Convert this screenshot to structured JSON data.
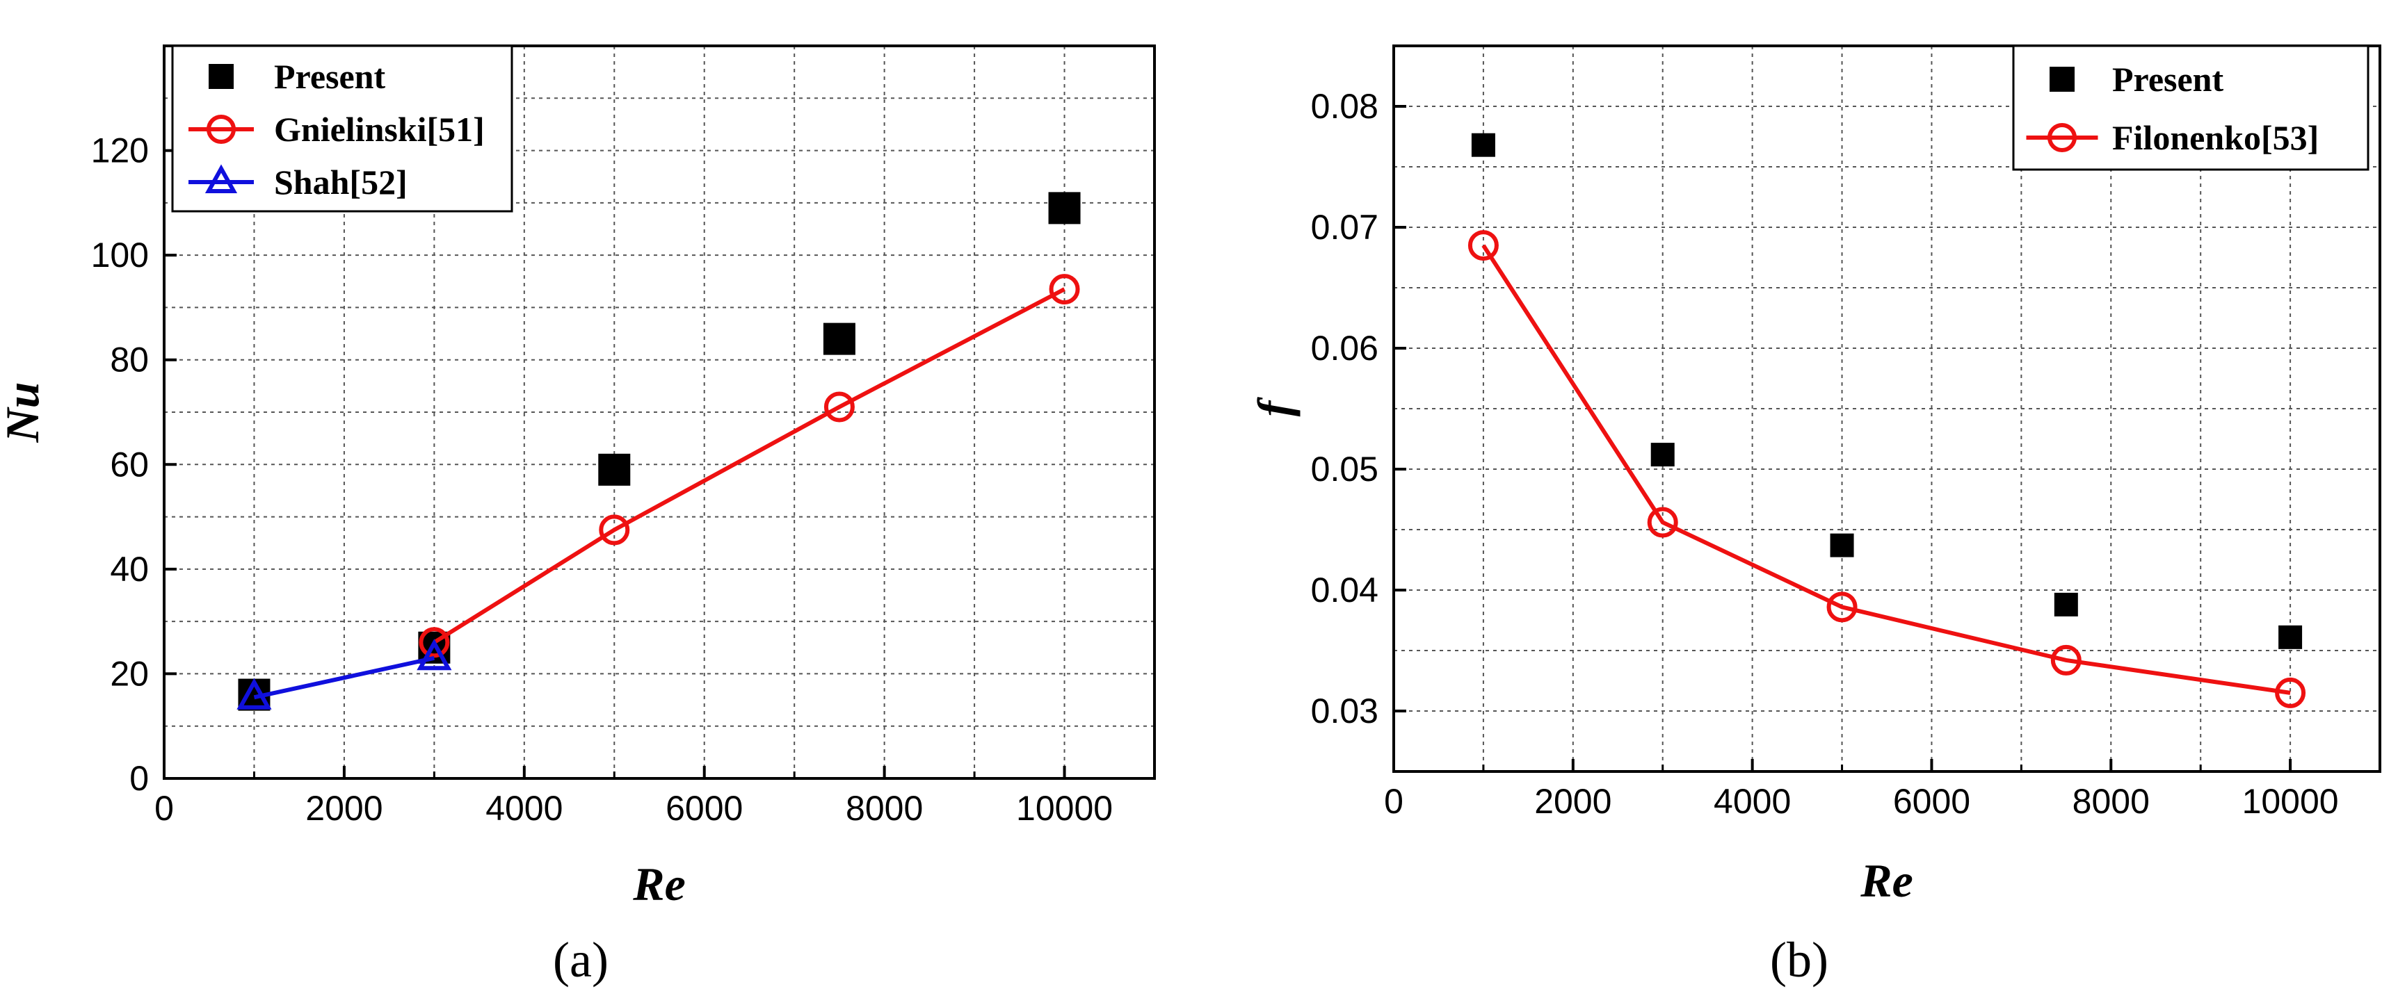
{
  "chart_data": [
    {
      "type": "scatter",
      "panel_label": "(a)",
      "xlabel": "Re",
      "ylabel": "Nu",
      "xlim": [
        0,
        11000
      ],
      "ylim": [
        0,
        140
      ],
      "xticks": [
        0,
        2000,
        4000,
        6000,
        8000,
        10000
      ],
      "yticks": [
        0,
        20,
        40,
        60,
        80,
        100,
        120
      ],
      "grid": true,
      "legend_position": "top-left",
      "series": [
        {
          "name": "Present",
          "marker": "square",
          "line": false,
          "color": "#000000",
          "x": [
            1000,
            3000,
            5000,
            7500,
            10000
          ],
          "y": [
            16,
            25,
            59,
            84,
            109
          ]
        },
        {
          "name": "Gnielinski[51]",
          "marker": "circle",
          "line": true,
          "color": "#ee1111",
          "x": [
            3000,
            5000,
            7500,
            10000
          ],
          "y": [
            26,
            47.5,
            71,
            93.5
          ]
        },
        {
          "name": "Shah[52]",
          "marker": "triangle",
          "line": true,
          "color": "#1010dd",
          "x": [
            1000,
            3000
          ],
          "y": [
            15.5,
            23
          ]
        }
      ]
    },
    {
      "type": "scatter",
      "panel_label": "(b)",
      "xlabel": "Re",
      "ylabel": "f",
      "xlim": [
        0,
        11000
      ],
      "ylim": [
        0.025,
        0.085
      ],
      "xticks": [
        0,
        2000,
        4000,
        6000,
        8000,
        10000
      ],
      "yticks": [
        0.03,
        0.04,
        0.05,
        0.06,
        0.07,
        0.08
      ],
      "grid": true,
      "legend_position": "top-right",
      "series": [
        {
          "name": "Present",
          "marker": "square",
          "line": false,
          "color": "#000000",
          "x": [
            1000,
            3000,
            5000,
            7500,
            10000
          ],
          "y": [
            0.0768,
            0.0512,
            0.0437,
            0.0388,
            0.0361
          ]
        },
        {
          "name": "Filonenko[53]",
          "marker": "circle",
          "line": true,
          "color": "#ee1111",
          "x": [
            1000,
            3000,
            5000,
            7500,
            10000
          ],
          "y": [
            0.0685,
            0.0456,
            0.0386,
            0.0342,
            0.0315
          ]
        }
      ]
    }
  ]
}
